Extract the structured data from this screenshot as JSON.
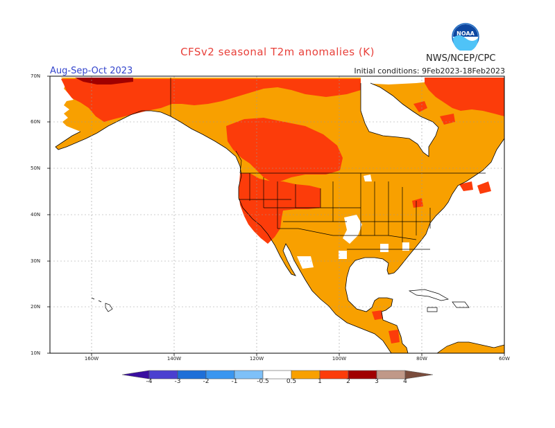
{
  "header": {
    "title": "CFSv2 seasonal T2m anomalies (K)",
    "period": "Aug-Sep-Oct 2023",
    "initial_conditions": "Initial conditions: 9Feb2023-18Feb2023",
    "agency": "NWS/NCEP/CPC",
    "logo_text": "NOAA"
  },
  "axes": {
    "lat_labels": [
      "70N",
      "60N",
      "50N",
      "40N",
      "30N",
      "20N",
      "10N"
    ],
    "lon_labels": [
      "160W",
      "140W",
      "120W",
      "100W",
      "80W",
      "60W"
    ]
  },
  "colorbar": {
    "labels": [
      "-4",
      "-3",
      "-2",
      "-1",
      "-0.5",
      "0.5",
      "1",
      "2",
      "3",
      "4"
    ],
    "colors": {
      "lt_neg4": "#3a0fa0",
      "neg4_neg3": "#4a3fd0",
      "neg3_neg2": "#1e6fd8",
      "neg2_neg1": "#3a96f0",
      "neg1_neg05": "#7ec0f8",
      "neutral": "#ffffff",
      "p05_p1": "#f8a000",
      "p1_p2": "#fc3c0a",
      "p2_p3": "#a00000",
      "p3_p4": "#c09888",
      "gt_p4": "#7a4c3c"
    }
  },
  "legend_colors": {
    "ocean": "#ffffff",
    "anomaly_05_1": "#f8a000",
    "anomaly_1_2": "#fc3c0a",
    "anomaly_2_3": "#a00000",
    "outline": "#000000",
    "grid": "#9a9a9a"
  }
}
